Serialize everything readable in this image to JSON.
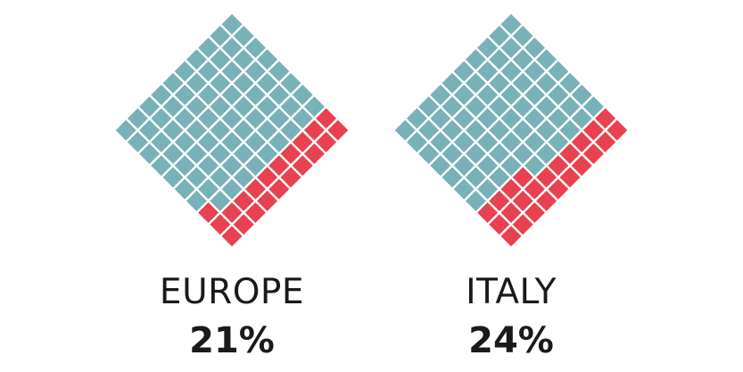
{
  "chart_data": {
    "type": "waffle",
    "charts": [
      {
        "label": "EUROPE",
        "value_text": "21%",
        "value": 21,
        "total": 100
      },
      {
        "label": "ITALY",
        "value_text": "24%",
        "value": 24,
        "total": 100
      }
    ],
    "colors": {
      "highlight": "#e8414f",
      "rest": "#79b1b8"
    },
    "grid": "10x10 diamond"
  }
}
